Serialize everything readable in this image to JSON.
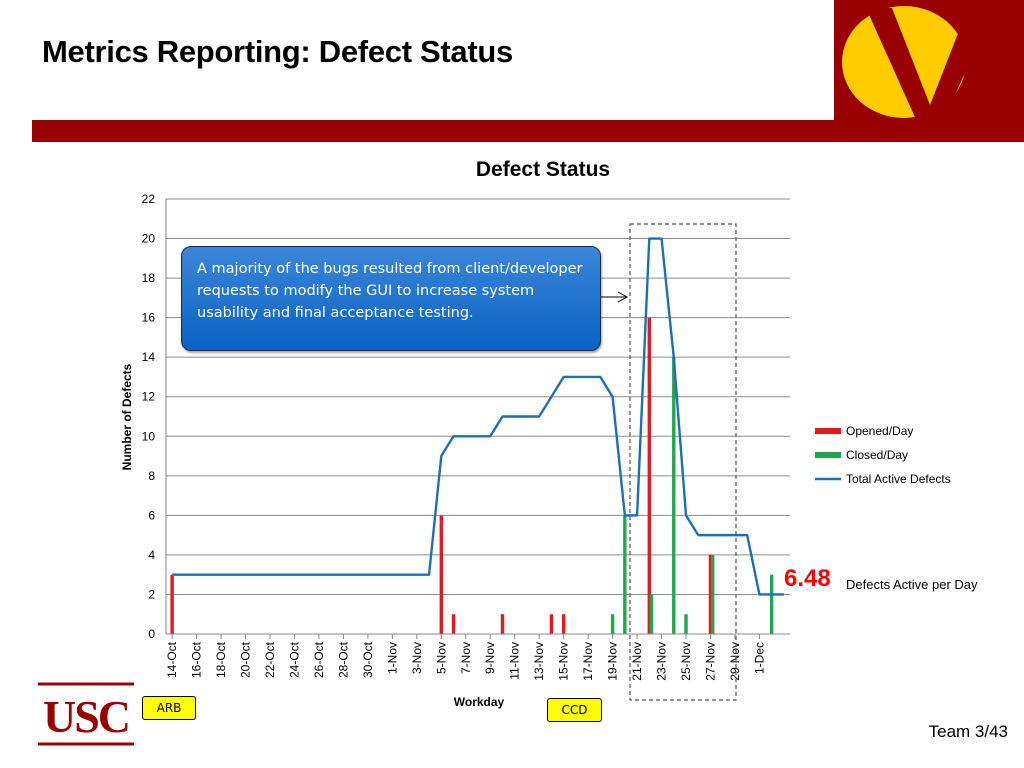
{
  "slide": {
    "title": "Metrics Reporting: Defect Status",
    "footer": "Team 3/43",
    "callout_text": "A majority of the bugs resulted from client/developer requests to modify the GUI to increase system usability and final acceptance testing.",
    "highlight_value": "6.48",
    "highlight_label": "Defects Active per Day",
    "tags": [
      "ARB",
      "CCD"
    ],
    "logo_text": "USC",
    "colors": {
      "brand_red": "#990000",
      "brand_gold": "#FFCC00",
      "opened": "#e41a1c",
      "closed": "#1fa84f",
      "active": "#1f6fb8"
    }
  },
  "chart_data": {
    "type": "bar+line",
    "title": "Defect Status",
    "xlabel": "Workday",
    "ylabel": "Number of Defects",
    "ylim": [
      0,
      22
    ],
    "yticks": [
      0,
      2,
      4,
      6,
      8,
      10,
      12,
      14,
      16,
      18,
      20,
      22
    ],
    "grid": true,
    "legend": "right",
    "categories": [
      "14-Oct",
      "15-Oct",
      "16-Oct",
      "17-Oct",
      "18-Oct",
      "19-Oct",
      "20-Oct",
      "21-Oct",
      "22-Oct",
      "23-Oct",
      "24-Oct",
      "25-Oct",
      "26-Oct",
      "27-Oct",
      "28-Oct",
      "29-Oct",
      "30-Oct",
      "31-Oct",
      "1-Nov",
      "2-Nov",
      "3-Nov",
      "4-Nov",
      "5-Nov",
      "6-Nov",
      "7-Nov",
      "8-Nov",
      "9-Nov",
      "10-Nov",
      "11-Nov",
      "12-Nov",
      "13-Nov",
      "14-Nov",
      "15-Nov",
      "16-Nov",
      "17-Nov",
      "18-Nov",
      "19-Nov",
      "20-Nov",
      "21-Nov",
      "22-Nov",
      "23-Nov",
      "24-Nov",
      "25-Nov",
      "26-Nov",
      "27-Nov",
      "28-Nov",
      "29-Nov",
      "30-Nov",
      "1-Dec",
      "2-Dec",
      "3-Dec"
    ],
    "tick_labels_shown": [
      "14-Oct",
      "16-Oct",
      "18-Oct",
      "20-Oct",
      "22-Oct",
      "24-Oct",
      "26-Oct",
      "28-Oct",
      "30-Oct",
      "1-Nov",
      "3-Nov",
      "5-Nov",
      "7-Nov",
      "9-Nov",
      "11-Nov",
      "13-Nov",
      "15-Nov",
      "17-Nov",
      "19-Nov",
      "21-Nov",
      "23-Nov",
      "25-Nov",
      "27-Nov",
      "29-Nov",
      "1-Dec"
    ],
    "series": [
      {
        "name": "Opened/Day",
        "type": "bar",
        "color": "#e41a1c",
        "values": [
          3,
          0,
          0,
          0,
          0,
          0,
          0,
          0,
          0,
          0,
          0,
          0,
          0,
          0,
          0,
          0,
          0,
          0,
          0,
          0,
          0,
          0,
          6,
          1,
          0,
          0,
          0,
          1,
          0,
          0,
          0,
          1,
          1,
          0,
          0,
          0,
          0,
          0,
          0,
          16,
          0,
          0,
          0,
          0,
          4,
          0,
          0,
          0,
          0,
          0,
          0
        ]
      },
      {
        "name": "Closed/Day",
        "type": "bar",
        "color": "#1fa84f",
        "values": [
          0,
          0,
          0,
          0,
          0,
          0,
          0,
          0,
          0,
          0,
          0,
          0,
          0,
          0,
          0,
          0,
          0,
          0,
          0,
          0,
          0,
          0,
          0,
          0,
          0,
          0,
          0,
          0,
          0,
          0,
          0,
          0,
          0,
          0,
          0,
          0,
          1,
          6,
          0,
          2,
          0,
          14,
          1,
          0,
          4,
          0,
          0,
          0,
          0,
          3,
          0
        ]
      },
      {
        "name": "Total Active Defects",
        "type": "line",
        "color": "#1f6fb8",
        "values": [
          3,
          3,
          3,
          3,
          3,
          3,
          3,
          3,
          3,
          3,
          3,
          3,
          3,
          3,
          3,
          3,
          3,
          3,
          3,
          3,
          3,
          3,
          9,
          10,
          10,
          10,
          10,
          11,
          11,
          11,
          11,
          12,
          13,
          13,
          13,
          13,
          12,
          6,
          6,
          20,
          20,
          14,
          6,
          5,
          5,
          5,
          5,
          5,
          2,
          2,
          2
        ]
      }
    ]
  }
}
